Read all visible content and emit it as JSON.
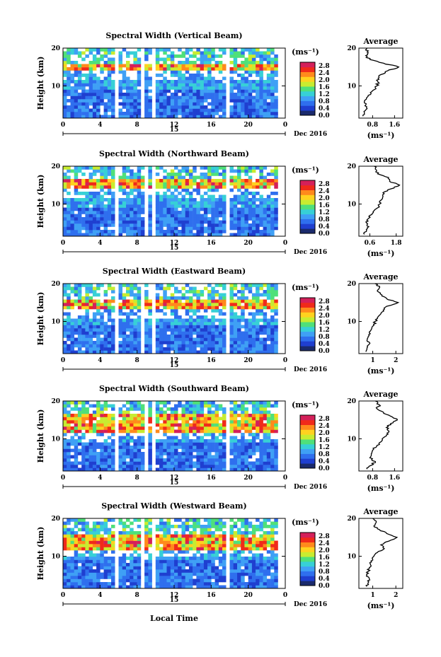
{
  "figure": {
    "xlabel": "Local Time",
    "date_label": "Dec 2016",
    "day_label": "15",
    "unit_label": "(ms⁻¹)",
    "average_title": "Average",
    "colorbar_ticks": [
      "2.8",
      "2.4",
      "2.0",
      "1.6",
      "1.2",
      "0.8",
      "0.4",
      "0.0"
    ],
    "colors": [
      "#1a2a6c",
      "#1f3fd0",
      "#2f6fee",
      "#3fa0f5",
      "#37d0d6",
      "#4fe07a",
      "#c8ec30",
      "#ffd21f",
      "#ff8a1c",
      "#f02a1a",
      "#d4205a"
    ]
  },
  "chart_data": [
    {
      "type": "heatmap",
      "title": "Spectral Width (Vertical Beam)",
      "xlabel": "Local Time",
      "ylabel": "Height (km)",
      "x_ticks": [
        "0",
        "4",
        "8",
        "12",
        "16",
        "20",
        "0"
      ],
      "y_ticks": [
        "20",
        "10"
      ],
      "xlim": [
        0,
        24
      ],
      "ylim": [
        1.5,
        20
      ],
      "colorbar": {
        "label": "(ms⁻¹)",
        "range": [
          0.0,
          3.0
        ]
      },
      "data_gaps_hours": [
        [
          5.6,
          6.0
        ],
        [
          8.6,
          8.9
        ],
        [
          9.6,
          9.9
        ],
        [
          17.6,
          17.9
        ]
      ],
      "enhanced_layer_km": [
        14,
        16
      ],
      "average": {
        "title": "Average",
        "xlabel": "(ms⁻¹)",
        "x_ticks": [
          "0.8",
          "1.6"
        ],
        "y_ticks": [
          "20",
          "10"
        ],
        "xlim": [
          0.3,
          1.9
        ],
        "profile": [
          {
            "h": 2,
            "v": 0.45
          },
          {
            "h": 3,
            "v": 0.5
          },
          {
            "h": 4,
            "v": 0.6
          },
          {
            "h": 5,
            "v": 0.55
          },
          {
            "h": 6,
            "v": 0.5
          },
          {
            "h": 7,
            "v": 0.6
          },
          {
            "h": 8,
            "v": 0.75
          },
          {
            "h": 9,
            "v": 0.85
          },
          {
            "h": 10,
            "v": 0.95
          },
          {
            "h": 11,
            "v": 1.0
          },
          {
            "h": 12,
            "v": 1.0
          },
          {
            "h": 13,
            "v": 1.1
          },
          {
            "h": 14,
            "v": 1.35
          },
          {
            "h": 15,
            "v": 1.75
          },
          {
            "h": 16,
            "v": 1.2
          },
          {
            "h": 17,
            "v": 0.7
          },
          {
            "h": 18,
            "v": 0.55
          },
          {
            "h": 19,
            "v": 0.6
          },
          {
            "h": 20,
            "v": 0.6
          }
        ]
      }
    },
    {
      "type": "heatmap",
      "title": "Spectral Width (Northward Beam)",
      "xlabel": "Local Time",
      "ylabel": "Height (km)",
      "x_ticks": [
        "0",
        "4",
        "8",
        "12",
        "16",
        "20",
        "0"
      ],
      "y_ticks": [
        "20",
        "10"
      ],
      "xlim": [
        0,
        24
      ],
      "ylim": [
        1.5,
        20
      ],
      "colorbar": {
        "label": "(ms⁻¹)",
        "range": [
          0.0,
          3.0
        ]
      },
      "data_gaps_hours": [
        [
          5.5,
          5.9
        ],
        [
          8.7,
          9.0
        ],
        [
          9.5,
          9.8
        ],
        [
          17.6,
          17.9
        ]
      ],
      "enhanced_layer_km": [
        14,
        17
      ],
      "average": {
        "title": "Average",
        "xlabel": "(ms⁻¹)",
        "x_ticks": [
          "0.6",
          "1.8"
        ],
        "y_ticks": [
          "20",
          "10"
        ],
        "xlim": [
          0.1,
          2.1
        ],
        "profile": [
          {
            "h": 2,
            "v": 0.35
          },
          {
            "h": 3,
            "v": 0.45
          },
          {
            "h": 4,
            "v": 0.55
          },
          {
            "h": 5,
            "v": 0.45
          },
          {
            "h": 6,
            "v": 0.5
          },
          {
            "h": 7,
            "v": 0.6
          },
          {
            "h": 8,
            "v": 0.75
          },
          {
            "h": 9,
            "v": 0.95
          },
          {
            "h": 10,
            "v": 1.05
          },
          {
            "h": 11,
            "v": 1.1
          },
          {
            "h": 12,
            "v": 1.2
          },
          {
            "h": 13,
            "v": 1.2
          },
          {
            "h": 14,
            "v": 1.55
          },
          {
            "h": 15,
            "v": 1.95
          },
          {
            "h": 16,
            "v": 1.5
          },
          {
            "h": 17,
            "v": 1.45
          },
          {
            "h": 18,
            "v": 0.95
          },
          {
            "h": 19,
            "v": 0.9
          },
          {
            "h": 20,
            "v": 0.8
          }
        ]
      }
    },
    {
      "type": "heatmap",
      "title": "Spectral Width (Eastward Beam)",
      "xlabel": "Local Time",
      "ylabel": "Height (km)",
      "x_ticks": [
        "0",
        "4",
        "8",
        "12",
        "16",
        "20",
        "0"
      ],
      "y_ticks": [
        "20",
        "10"
      ],
      "xlim": [
        0,
        24
      ],
      "ylim": [
        1.5,
        20
      ],
      "colorbar": {
        "label": "(ms⁻¹)",
        "range": [
          0.0,
          3.0
        ]
      },
      "data_gaps_hours": [
        [
          5.6,
          6.0
        ],
        [
          8.6,
          8.9
        ],
        [
          9.7,
          10.0
        ],
        [
          17.6,
          17.9
        ]
      ],
      "enhanced_layer_km": [
        13,
        16
      ],
      "average": {
        "title": "Average",
        "xlabel": "(ms⁻¹)",
        "x_ticks": [
          "1",
          "2"
        ],
        "y_ticks": [
          "20",
          "10"
        ],
        "xlim": [
          0.4,
          2.3
        ],
        "profile": [
          {
            "h": 2,
            "v": 0.7
          },
          {
            "h": 3,
            "v": 0.75
          },
          {
            "h": 4,
            "v": 0.85
          },
          {
            "h": 5,
            "v": 0.75
          },
          {
            "h": 6,
            "v": 0.8
          },
          {
            "h": 7,
            "v": 0.85
          },
          {
            "h": 8,
            "v": 0.95
          },
          {
            "h": 9,
            "v": 1.05
          },
          {
            "h": 10,
            "v": 1.1
          },
          {
            "h": 11,
            "v": 1.2
          },
          {
            "h": 12,
            "v": 1.35
          },
          {
            "h": 13,
            "v": 1.45
          },
          {
            "h": 14,
            "v": 1.6
          },
          {
            "h": 15,
            "v": 2.1
          },
          {
            "h": 16,
            "v": 1.6
          },
          {
            "h": 17,
            "v": 1.4
          },
          {
            "h": 18,
            "v": 1.2
          },
          {
            "h": 19,
            "v": 1.3
          },
          {
            "h": 20,
            "v": 1.1
          }
        ]
      }
    },
    {
      "type": "heatmap",
      "title": "Spectral Width (Southward Beam)",
      "xlabel": "Local Time",
      "ylabel": "Height (km)",
      "x_ticks": [
        "0",
        "4",
        "8",
        "12",
        "16",
        "20",
        "0"
      ],
      "y_ticks": [
        "20",
        "10"
      ],
      "xlim": [
        0,
        24
      ],
      "ylim": [
        1.5,
        20
      ],
      "colorbar": {
        "label": "(ms⁻¹)",
        "range": [
          0.0,
          3.0
        ]
      },
      "data_gaps_hours": [
        [
          5.6,
          6.0
        ],
        [
          8.8,
          9.1
        ],
        [
          9.8,
          10.1
        ],
        [
          17.6,
          17.9
        ]
      ],
      "enhanced_layer_km": [
        12,
        17
      ],
      "average": {
        "title": "Average",
        "xlabel": "(ms⁻¹)",
        "x_ticks": [
          "0.8",
          "1.6"
        ],
        "y_ticks": [
          "20",
          "10"
        ],
        "xlim": [
          0.3,
          1.9
        ],
        "profile": [
          {
            "h": 2,
            "v": 0.6
          },
          {
            "h": 3,
            "v": 0.75
          },
          {
            "h": 4,
            "v": 0.9
          },
          {
            "h": 5,
            "v": 0.7
          },
          {
            "h": 6,
            "v": 0.75
          },
          {
            "h": 7,
            "v": 0.8
          },
          {
            "h": 8,
            "v": 0.95
          },
          {
            "h": 9,
            "v": 1.05
          },
          {
            "h": 10,
            "v": 1.15
          },
          {
            "h": 11,
            "v": 1.3
          },
          {
            "h": 12,
            "v": 1.4
          },
          {
            "h": 13,
            "v": 1.3
          },
          {
            "h": 14,
            "v": 1.45
          },
          {
            "h": 15,
            "v": 1.7
          },
          {
            "h": 16,
            "v": 1.45
          },
          {
            "h": 17,
            "v": 1.2
          },
          {
            "h": 18,
            "v": 0.95
          },
          {
            "h": 19,
            "v": 1.05
          },
          {
            "h": 20,
            "v": 0.9
          }
        ]
      }
    },
    {
      "type": "heatmap",
      "title": "Spectral Width (Westward Beam)",
      "xlabel": "Local Time",
      "ylabel": "Height (km)",
      "x_ticks": [
        "0",
        "4",
        "8",
        "12",
        "16",
        "20",
        "0"
      ],
      "y_ticks": [
        "20",
        "10"
      ],
      "xlim": [
        0,
        24
      ],
      "ylim": [
        1.5,
        20
      ],
      "colorbar": {
        "label": "(ms⁻¹)",
        "range": [
          0.0,
          3.0
        ]
      },
      "data_gaps_hours": [
        [
          5.6,
          6.0
        ],
        [
          8.6,
          8.9
        ],
        [
          9.7,
          10.0
        ],
        [
          17.6,
          17.9
        ]
      ],
      "enhanced_layer_km": [
        12,
        16
      ],
      "average": {
        "title": "Average",
        "xlabel": "(ms⁻¹)",
        "x_ticks": [
          "1",
          "2"
        ],
        "y_ticks": [
          "20",
          "10"
        ],
        "xlim": [
          0.4,
          2.3
        ],
        "profile": [
          {
            "h": 2,
            "v": 0.75
          },
          {
            "h": 3,
            "v": 0.8
          },
          {
            "h": 4,
            "v": 0.85
          },
          {
            "h": 5,
            "v": 0.75
          },
          {
            "h": 6,
            "v": 0.8
          },
          {
            "h": 7,
            "v": 0.85
          },
          {
            "h": 8,
            "v": 0.9
          },
          {
            "h": 9,
            "v": 1.0
          },
          {
            "h": 10,
            "v": 1.05
          },
          {
            "h": 11,
            "v": 1.2
          },
          {
            "h": 12,
            "v": 1.5
          },
          {
            "h": 13,
            "v": 1.35
          },
          {
            "h": 14,
            "v": 1.7
          },
          {
            "h": 15,
            "v": 2.05
          },
          {
            "h": 16,
            "v": 1.6
          },
          {
            "h": 17,
            "v": 1.3
          },
          {
            "h": 18,
            "v": 1.05
          },
          {
            "h": 19,
            "v": 1.15
          },
          {
            "h": 20,
            "v": 1.0
          }
        ]
      }
    }
  ]
}
